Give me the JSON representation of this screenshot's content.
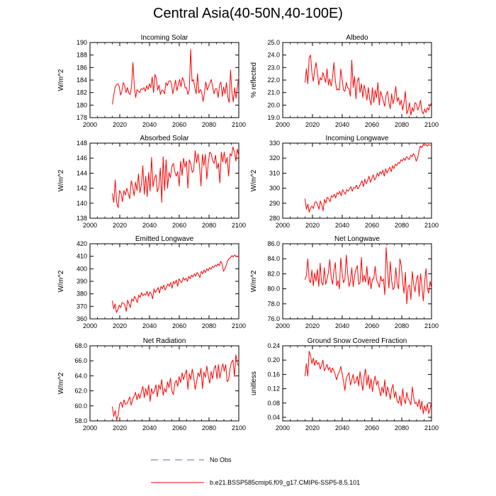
{
  "title": "Central Asia(40-50N,40-100E)",
  "legend": {
    "obs_label": "No Obs",
    "model_label": "b.e21.BSSP585cmip6.f09_g17.CMIP6-SSP5-8.5.101",
    "obs_color": "#6f5fb5",
    "model_color": "#ff0000"
  },
  "chart_data": [
    {
      "type": "line",
      "title": "Incoming Solar",
      "ylabel": "W/m^2",
      "xlim": [
        2000,
        2100
      ],
      "ylim": [
        178,
        190
      ],
      "xticks": [
        "2000",
        "2020",
        "2040",
        "2060",
        "2080",
        "2100"
      ],
      "yticks": [
        "178",
        "180",
        "182",
        "184",
        "186",
        "188",
        "190"
      ],
      "x_start": 2015,
      "series": [
        {
          "color": "#ff0000",
          "values": [
            180.1,
            181.5,
            182.8,
            183.3,
            183.4,
            183.0,
            181.6,
            182.3,
            183.6,
            183.1,
            182.0,
            182.8,
            181.9,
            181.7,
            183.0,
            186.8,
            182.9,
            181.2,
            182.5,
            182.2,
            182.0,
            182.6,
            182.5,
            182.8,
            182.2,
            183.1,
            182.5,
            183.4,
            182.8,
            184.5,
            182.0,
            184.9,
            184.3,
            182.4,
            183.2,
            181.7,
            182.4,
            182.3,
            181.8,
            183.6,
            183.1,
            183.8,
            183.9,
            183.5,
            181.8,
            182.9,
            184.0,
            182.3,
            183.3,
            184.1,
            182.9,
            184.4,
            183.9,
            182.7,
            182.8,
            181.7,
            182.5,
            188.9,
            183.8,
            184.1,
            182.8,
            181.8,
            185.0,
            181.9,
            182.5,
            182.1,
            180.6,
            181.9,
            183.7,
            182.4,
            183.0,
            183.5,
            184.1,
            182.9,
            181.8,
            182.6,
            182.6,
            181.2,
            183.2,
            183.7,
            181.4,
            182.9,
            181.8,
            183.6,
            181.3,
            180.4,
            185.6,
            182.0,
            180.5,
            182.8,
            181.1,
            182.9,
            184.5
          ]
        }
      ]
    },
    {
      "type": "line",
      "title": "Albedo",
      "ylabel": "% reflected",
      "xlim": [
        2000,
        2100
      ],
      "ylim": [
        19.0,
        25.0
      ],
      "xticks": [
        "2000",
        "2020",
        "2040",
        "2060",
        "2080",
        "2100"
      ],
      "yticks": [
        "19.0",
        "20.0",
        "21.0",
        "22.0",
        "23.0",
        "24.0",
        "25.0"
      ],
      "x_start": 2015,
      "series": [
        {
          "color": "#ff0000",
          "values": [
            21.8,
            22.9,
            21.7,
            23.8,
            24.0,
            22.6,
            21.9,
            22.8,
            23.4,
            22.6,
            21.6,
            22.2,
            22.0,
            22.6,
            22.2,
            21.8,
            22.9,
            21.6,
            22.1,
            21.5,
            22.2,
            23.4,
            22.0,
            21.2,
            21.3,
            21.2,
            22.9,
            22.0,
            21.2,
            21.1,
            21.8,
            21.4,
            21.3,
            20.7,
            23.6,
            21.4,
            22.3,
            20.5,
            21.9,
            22.2,
            21.0,
            21.7,
            20.6,
            21.6,
            21.1,
            20.4,
            21.4,
            20.5,
            20.0,
            21.4,
            20.2,
            21.2,
            20.6,
            21.8,
            20.0,
            21.1,
            20.7,
            20.3,
            19.9,
            20.8,
            21.1,
            20.2,
            19.7,
            20.9,
            20.1,
            20.6,
            21.5,
            20.3,
            20.6,
            20.0,
            20.4,
            19.6,
            20.2,
            21.1,
            19.3,
            19.6,
            20.2,
            19.2,
            19.8,
            19.5,
            20.2,
            20.1,
            19.6,
            19.9,
            20.4,
            19.5,
            19.3,
            19.7,
            19.4,
            19.8,
            19.6,
            20.0,
            20.2
          ]
        }
      ]
    },
    {
      "type": "line",
      "title": "Absorbed Solar",
      "ylabel": "W/m^2",
      "xlim": [
        2000,
        2100
      ],
      "ylim": [
        138,
        148
      ],
      "xticks": [
        "2000",
        "2020",
        "2040",
        "2060",
        "2080",
        "2100"
      ],
      "yticks": [
        "138",
        "140",
        "142",
        "144",
        "146",
        "148"
      ],
      "x_start": 2015,
      "series": [
        {
          "color": "#ff0000",
          "values": [
            141.3,
            140.1,
            143.1,
            140.1,
            139.4,
            141.7,
            141.3,
            140.2,
            141.7,
            141.1,
            142.0,
            141.3,
            140.6,
            143.0,
            142.2,
            141.0,
            142.8,
            141.7,
            143.9,
            141.4,
            142.5,
            145.0,
            141.2,
            143.6,
            140.9,
            144.1,
            141.6,
            146.1,
            142.2,
            143.3,
            143.8,
            141.5,
            142.2,
            144.7,
            140.1,
            146.2,
            141.7,
            145.8,
            142.0,
            144.1,
            143.4,
            144.9,
            145.3,
            144.2,
            143.6,
            144.2,
            142.3,
            145.6,
            143.7,
            146.0,
            144.8,
            145.6,
            142.0,
            145.8,
            145.2,
            144.1,
            144.4,
            147.0,
            145.4,
            146.6,
            144.9,
            142.3,
            146.5,
            145.0,
            146.5,
            143.2,
            145.3,
            146.8,
            146.6,
            145.7,
            145.3,
            146.4,
            144.6,
            145.3,
            142.7,
            146.8,
            145.5,
            146.8,
            145.3,
            146.1,
            143.6,
            146.6,
            146.3,
            147.5,
            146.8,
            145.6,
            147.2,
            146.3
          ]
        }
      ]
    },
    {
      "type": "line",
      "title": "Incoming Longwave",
      "ylabel": "W/m^2",
      "xlim": [
        2000,
        2100
      ],
      "ylim": [
        280,
        330
      ],
      "xticks": [
        "2000",
        "2020",
        "2040",
        "2060",
        "2080",
        "2100"
      ],
      "yticks": [
        "280",
        "290",
        "300",
        "310",
        "320",
        "330"
      ],
      "x_start": 2015,
      "series": [
        {
          "color": "#ff0000",
          "values": [
            293.0,
            286.0,
            289.5,
            284.0,
            287.0,
            288.0,
            286.5,
            290.5,
            291.0,
            289.0,
            286.0,
            291.5,
            289.0,
            285.0,
            292.5,
            290.0,
            294.0,
            293.0,
            291.0,
            295.0,
            294.0,
            296.0,
            293.5,
            297.0,
            296.0,
            298.0,
            295.0,
            299.0,
            297.5,
            296.0,
            299.0,
            298.0,
            299.5,
            301.0,
            298.0,
            300.5,
            300.0,
            302.0,
            299.5,
            301.0,
            303.0,
            305.0,
            301.0,
            306.0,
            303.0,
            305.0,
            308.0,
            304.0,
            306.0,
            309.0,
            305.5,
            307.0,
            310.0,
            308.0,
            311.0,
            309.5,
            312.0,
            308.0,
            313.0,
            310.0,
            312.5,
            314.0,
            311.0,
            315.0,
            313.0,
            316.0,
            315.0,
            317.0,
            316.5,
            319.0,
            318.0,
            320.0,
            318.5,
            321.0,
            320.0,
            319.0,
            322.0,
            321.0,
            323.0,
            321.5,
            318.0,
            320.0,
            325.0,
            328.0,
            327.0,
            329.0,
            328.5,
            329.0,
            328.0,
            329.0,
            328.5,
            328.8
          ]
        }
      ]
    },
    {
      "type": "line",
      "title": "Emitted Longwave",
      "ylabel": "W/m^2",
      "xlim": [
        2000,
        2100
      ],
      "ylim": [
        360,
        420
      ],
      "xticks": [
        "2000",
        "2020",
        "2040",
        "2060",
        "2080",
        "2100"
      ],
      "yticks": [
        "360",
        "370",
        "380",
        "390",
        "400",
        "410",
        "420"
      ],
      "x_start": 2015,
      "series": [
        {
          "color": "#ff0000",
          "values": [
            374.5,
            368.0,
            372.0,
            365.0,
            367.5,
            371.0,
            369.0,
            373.0,
            372.5,
            371.0,
            366.0,
            375.0,
            372.0,
            369.0,
            376.0,
            374.0,
            378.0,
            376.0,
            373.0,
            379.0,
            377.0,
            381.0,
            378.5,
            380.0,
            379.0,
            382.0,
            378.0,
            381.5,
            380.0,
            376.0,
            384.0,
            381.0,
            383.0,
            385.0,
            380.5,
            386.0,
            384.0,
            387.0,
            383.0,
            385.5,
            388.0,
            386.0,
            389.0,
            384.5,
            390.0,
            388.0,
            391.0,
            386.0,
            392.0,
            390.0,
            389.0,
            393.0,
            391.0,
            392.5,
            390.0,
            394.0,
            392.0,
            395.0,
            393.5,
            396.0,
            394.0,
            397.0,
            395.5,
            393.0,
            398.0,
            396.0,
            399.0,
            397.0,
            400.0,
            398.5,
            401.0,
            399.5,
            402.0,
            401.0,
            403.0,
            402.0,
            404.0,
            402.5,
            406.0,
            404.0,
            398.0,
            400.0,
            403.0,
            406.5,
            408.0,
            409.0,
            410.5,
            409.5,
            411.0,
            410.0,
            409.8,
            410.2
          ]
        }
      ]
    },
    {
      "type": "line",
      "title": "Net Longwave",
      "ylabel": "W/m^2",
      "xlim": [
        2000,
        2100
      ],
      "ylim": [
        76.0,
        86.0
      ],
      "xticks": [
        "2000",
        "2020",
        "2040",
        "2060",
        "2080",
        "2100"
      ],
      "yticks": [
        "76.0",
        "78.0",
        "80.0",
        "82.0",
        "84.0",
        "86.0"
      ],
      "x_start": 2015,
      "series": [
        {
          "color": "#ff0000",
          "values": [
            81.2,
            81.8,
            84.0,
            81.2,
            80.8,
            82.5,
            80.4,
            82.1,
            81.0,
            82.6,
            80.3,
            83.4,
            80.8,
            80.5,
            82.8,
            80.6,
            81.3,
            82.2,
            83.9,
            81.5,
            80.6,
            82.4,
            83.5,
            80.4,
            81.1,
            80.0,
            84.1,
            82.1,
            80.8,
            81.3,
            84.5,
            82.1,
            80.3,
            81.0,
            82.8,
            80.3,
            81.7,
            82.6,
            83.1,
            80.6,
            80.8,
            84.2,
            80.9,
            81.8,
            80.9,
            83.0,
            80.5,
            81.6,
            80.0,
            81.3,
            81.3,
            83.0,
            81.2,
            80.8,
            80.2,
            81.7,
            81.0,
            81.3,
            79.2,
            85.5,
            82.5,
            80.1,
            83.6,
            81.1,
            79.9,
            80.2,
            82.8,
            80.7,
            80.0,
            84.0,
            83.1,
            81.0,
            79.4,
            82.2,
            78.0,
            80.3,
            80.5,
            78.6,
            82.3,
            80.6,
            79.6,
            81.2,
            81.8,
            79.0,
            82.0,
            80.4,
            78.4,
            80.9,
            82.7,
            80.0,
            79.4,
            81.0,
            80.1
          ]
        }
      ]
    },
    {
      "type": "line",
      "title": "Net Radiation",
      "ylabel": "W/m^2",
      "xlim": [
        2000,
        2100
      ],
      "ylim": [
        58.0,
        68.0
      ],
      "xticks": [
        "2000",
        "2020",
        "2040",
        "2060",
        "2080",
        "2100"
      ],
      "yticks": [
        "58.0",
        "60.0",
        "62.0",
        "64.0",
        "66.0",
        "68.0"
      ],
      "x_start": 2015,
      "series": [
        {
          "color": "#ff0000",
          "values": [
            59.9,
            58.6,
            59.4,
            58.1,
            58.7,
            60.2,
            60.5,
            59.8,
            60.8,
            60.2,
            60.3,
            60.7,
            61.2,
            60.1,
            60.9,
            61.3,
            61.8,
            60.8,
            61.6,
            61.0,
            61.9,
            62.6,
            61.1,
            62.3,
            61.4,
            62.8,
            60.6,
            62.3,
            61.6,
            62.0,
            62.8,
            61.2,
            62.8,
            62.2,
            63.5,
            61.4,
            62.3,
            61.8,
            63.2,
            62.4,
            63.7,
            62.0,
            61.5,
            63.0,
            63.4,
            62.6,
            63.9,
            63.1,
            64.4,
            63.5,
            64.2,
            64.8,
            62.2,
            64.3,
            63.5,
            64.9,
            63.8,
            62.2,
            63.2,
            64.4,
            63.9,
            65.0,
            62.3,
            64.5,
            63.8,
            65.3,
            64.0,
            63.0,
            64.6,
            63.6,
            64.9,
            65.4,
            63.6,
            65.5,
            63.7,
            64.8,
            65.6,
            64.6,
            65.5,
            63.2,
            63.5,
            65.0,
            65.8,
            66.1,
            63.9,
            66.8,
            65.6,
            65.3
          ]
        }
      ]
    },
    {
      "type": "line",
      "title": "Ground Snow Covered Fraction",
      "ylabel": "unitless",
      "xlim": [
        2000,
        2100
      ],
      "ylim": [
        0.03,
        0.24
      ],
      "xticks": [
        "2000",
        "2020",
        "2040",
        "2060",
        "2080",
        "2100"
      ],
      "yticks": [
        "0.04",
        "0.08",
        "0.12",
        "0.16",
        "0.20",
        "0.24"
      ],
      "x_start": 2015,
      "series": [
        {
          "color": "#ff0000",
          "values": [
            0.155,
            0.19,
            0.155,
            0.225,
            0.212,
            0.19,
            0.205,
            0.185,
            0.2,
            0.188,
            0.193,
            0.175,
            0.185,
            0.2,
            0.17,
            0.178,
            0.188,
            0.172,
            0.18,
            0.165,
            0.178,
            0.17,
            0.158,
            0.145,
            0.16,
            0.168,
            0.182,
            0.162,
            0.14,
            0.115,
            0.15,
            0.158,
            0.165,
            0.13,
            0.145,
            0.16,
            0.135,
            0.14,
            0.155,
            0.128,
            0.168,
            0.14,
            0.115,
            0.155,
            0.175,
            0.13,
            0.158,
            0.12,
            0.148,
            0.112,
            0.138,
            0.155,
            0.13,
            0.142,
            0.118,
            0.1,
            0.125,
            0.108,
            0.145,
            0.098,
            0.125,
            0.112,
            0.09,
            0.12,
            0.132,
            0.095,
            0.112,
            0.085,
            0.08,
            0.1,
            0.072,
            0.12,
            0.09,
            0.078,
            0.11,
            0.092,
            0.085,
            0.075,
            0.125,
            0.095,
            0.078,
            0.082,
            0.07,
            0.09,
            0.062,
            0.085,
            0.05,
            0.072,
            0.058,
            0.078,
            0.05,
            0.065,
            0.083
          ]
        }
      ]
    }
  ]
}
